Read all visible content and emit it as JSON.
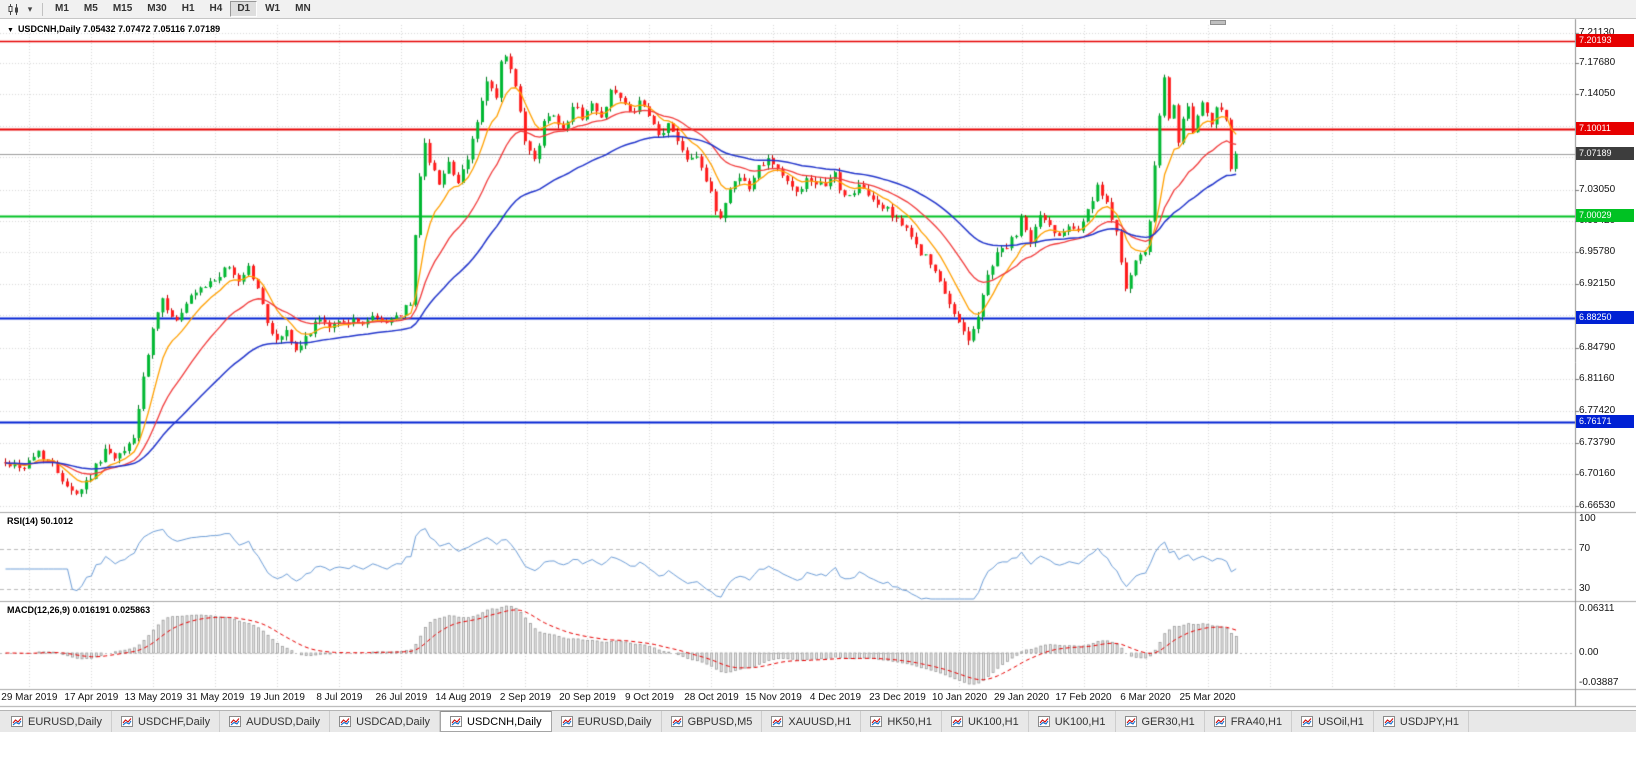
{
  "toolbar": {
    "timeframes": [
      {
        "label": "M1",
        "active": false
      },
      {
        "label": "M5",
        "active": false
      },
      {
        "label": "M15",
        "active": false
      },
      {
        "label": "M30",
        "active": false
      },
      {
        "label": "H1",
        "active": false
      },
      {
        "label": "H4",
        "active": false
      },
      {
        "label": "D1",
        "active": true
      },
      {
        "label": "W1",
        "active": false
      },
      {
        "label": "MN",
        "active": false
      }
    ]
  },
  "chart": {
    "title": "USDCNH,Daily 7.05432 7.07472 7.05116 7.07189",
    "symbol": "USDCNH",
    "period": "Daily",
    "ohlc": {
      "open": "7.05432",
      "high": "7.07472",
      "low": "7.05116",
      "close": "7.07189"
    },
    "current_price": {
      "text": "7.07189",
      "value": 7.07189,
      "badge_color": "#3d3d3d"
    },
    "hlines": [
      {
        "text": "7.20193",
        "value": 7.20193,
        "color": "#e60000",
        "width": 1.5
      },
      {
        "text": "7.10011",
        "value": 7.10011,
        "color": "#e60000",
        "width": 2
      },
      {
        "text": "7.00029",
        "value": 7.00029,
        "color": "#00c223",
        "width": 2
      },
      {
        "text": "6.88250",
        "value": 6.8825,
        "color": "#0021d4",
        "width": 2
      },
      {
        "text": "6.76171",
        "value": 6.76171,
        "color": "#0021d4",
        "width": 2
      }
    ],
    "y_axis_labels": [
      {
        "text": "7.21130",
        "value": 7.2113
      },
      {
        "text": "7.17680",
        "value": 7.1768
      },
      {
        "text": "7.14050",
        "value": 7.1405
      },
      {
        "text": "7.03050",
        "value": 7.0305
      },
      {
        "text": "6.99420",
        "value": 6.9942
      },
      {
        "text": "6.95780",
        "value": 6.9578
      },
      {
        "text": "6.92150",
        "value": 6.9215
      },
      {
        "text": "6.84790",
        "value": 6.8479
      },
      {
        "text": "6.81160",
        "value": 6.8116
      },
      {
        "text": "6.77420",
        "value": 6.7742
      },
      {
        "text": "6.73790",
        "value": 6.7379
      },
      {
        "text": "6.70160",
        "value": 6.7016
      },
      {
        "text": "6.66530",
        "value": 6.6653
      }
    ],
    "grid_prices": [
      7.2113,
      7.1768,
      7.1405,
      7.1042,
      7.0679,
      7.0305,
      6.9942,
      6.9578,
      6.9215,
      6.8852,
      6.8479,
      6.8116,
      6.7742,
      6.7379,
      6.7016,
      6.6653
    ],
    "x_axis_dates": [
      "29 Mar 2019",
      "17 Apr 2019",
      "13 May 2019",
      "31 May 2019",
      "19 Jun 2019",
      "8 Jul 2019",
      "26 Jul 2019",
      "14 Aug 2019",
      "2 Sep 2019",
      "20 Sep 2019",
      "9 Oct 2019",
      "28 Oct 2019",
      "15 Nov 2019",
      "4 Dec 2019",
      "23 Dec 2019",
      "10 Jan 2020",
      "29 Jan 2020",
      "17 Feb 2020",
      "6 Mar 2020",
      "25 Mar 2020"
    ]
  },
  "rsi": {
    "label": "RSI(14) 50.1012",
    "period": 14,
    "value": "50.1012",
    "axis_labels": [
      {
        "text": "100",
        "value": 100
      },
      {
        "text": "70",
        "value": 70
      },
      {
        "text": "30",
        "value": 30
      }
    ],
    "level_lines": [
      70,
      30
    ]
  },
  "macd": {
    "label": "MACD(12,26,9) 0.016191 0.025863",
    "params": "12,26,9",
    "values": [
      "0.016191",
      "0.025863"
    ],
    "axis_labels": [
      {
        "text": "0.06311",
        "value": 0.06311
      },
      {
        "text": "0.00",
        "value": 0
      },
      {
        "text": "-0.03887",
        "value": -0.03887
      }
    ]
  },
  "tabs": [
    {
      "label": "EURUSD,Daily",
      "active": false
    },
    {
      "label": "USDCHF,Daily",
      "active": false
    },
    {
      "label": "AUDUSD,Daily",
      "active": false
    },
    {
      "label": "USDCAD,Daily",
      "active": false
    },
    {
      "label": "USDCNH,Daily",
      "active": true
    },
    {
      "label": "EURUSD,Daily",
      "active": false
    },
    {
      "label": "GBPUSD,M5",
      "active": false
    },
    {
      "label": "XAUUSD,H1",
      "active": false
    },
    {
      "label": "HK50,H1",
      "active": false
    },
    {
      "label": "UK100,H1",
      "active": false
    },
    {
      "label": "UK100,H1",
      "active": false
    },
    {
      "label": "GER30,H1",
      "active": false
    },
    {
      "label": "FRA40,H1",
      "active": false
    },
    {
      "label": "USOil,H1",
      "active": false
    },
    {
      "label": "USDJPY,H1",
      "active": false
    }
  ],
  "colors": {
    "up": "#00b832",
    "up_stroke": "#007d20",
    "down": "#ff1a1a",
    "down_stroke": "#c40000",
    "ma_fast": "#ffa000",
    "ma_mid": "#f23c3c",
    "ma_slow": "#2336cc",
    "rsi": "#6f9fd8",
    "rsi_level": "#bcbcbc",
    "grid": "#d9d9d9",
    "macd_hist_fill": "#e9e9e9",
    "macd_hist_stroke": "#9b9b9b",
    "macd_signal": "#e80000",
    "current_line": "#9c9c9c",
    "separator": "#a8a8a8",
    "axis_line": "#8f8f8f"
  },
  "chart_data": {
    "type": "candlestick",
    "symbol": "USDCNH",
    "timeframe": "Daily",
    "date_range": [
      "29 Mar 2019",
      "7 Apr 2020"
    ],
    "y_range": [
      6.6653,
      7.2113
    ],
    "candle_count": 259,
    "last_candle": {
      "open": 7.05432,
      "high": 7.07472,
      "low": 7.05116,
      "close": 7.07189
    },
    "horizontal_levels": [
      7.20193,
      7.10011,
      7.07189,
      7.00029,
      6.8825,
      6.76171
    ],
    "moving_averages": [
      {
        "period": 8,
        "color_key": "ma_fast"
      },
      {
        "period": 20,
        "color_key": "ma_mid"
      },
      {
        "period": 45,
        "color_key": "ma_slow"
      }
    ],
    "indicators": [
      {
        "name": "RSI",
        "period": 14,
        "current": 50.1012
      },
      {
        "name": "MACD",
        "fast": 12,
        "slow": 26,
        "signal": 9,
        "current": [
          0.016191,
          0.025863
        ]
      }
    ],
    "price_path": [
      [
        0,
        6.715
      ],
      [
        4,
        6.71
      ],
      [
        7,
        6.728
      ],
      [
        10,
        6.712
      ],
      [
        13,
        6.69
      ],
      [
        15,
        6.679
      ],
      [
        18,
        6.7
      ],
      [
        21,
        6.73
      ],
      [
        23,
        6.718
      ],
      [
        25,
        6.728
      ],
      [
        27,
        6.745
      ],
      [
        29,
        6.81
      ],
      [
        31,
        6.868
      ],
      [
        33,
        6.902
      ],
      [
        36,
        6.878
      ],
      [
        39,
        6.905
      ],
      [
        42,
        6.918
      ],
      [
        45,
        6.932
      ],
      [
        47,
        6.94
      ],
      [
        49,
        6.925
      ],
      [
        51,
        6.942
      ],
      [
        53,
        6.915
      ],
      [
        55,
        6.878
      ],
      [
        57,
        6.855
      ],
      [
        59,
        6.868
      ],
      [
        61,
        6.842
      ],
      [
        63,
        6.858
      ],
      [
        65,
        6.878
      ],
      [
        68,
        6.872
      ],
      [
        71,
        6.88
      ],
      [
        74,
        6.876
      ],
      [
        77,
        6.882
      ],
      [
        80,
        6.878
      ],
      [
        83,
        6.888
      ],
      [
        85,
        6.898
      ],
      [
        86,
        6.975
      ],
      [
        87,
        7.048
      ],
      [
        88,
        7.088
      ],
      [
        89,
        7.06
      ],
      [
        91,
        7.04
      ],
      [
        93,
        7.062
      ],
      [
        95,
        7.035
      ],
      [
        97,
        7.065
      ],
      [
        99,
        7.11
      ],
      [
        101,
        7.155
      ],
      [
        103,
        7.135
      ],
      [
        104,
        7.175
      ],
      [
        105,
        7.185
      ],
      [
        107,
        7.148
      ],
      [
        109,
        7.085
      ],
      [
        111,
        7.062
      ],
      [
        113,
        7.108
      ],
      [
        115,
        7.12
      ],
      [
        117,
        7.098
      ],
      [
        119,
        7.128
      ],
      [
        121,
        7.115
      ],
      [
        123,
        7.128
      ],
      [
        125,
        7.112
      ],
      [
        127,
        7.148
      ],
      [
        129,
        7.135
      ],
      [
        131,
        7.118
      ],
      [
        133,
        7.13
      ],
      [
        135,
        7.115
      ],
      [
        137,
        7.092
      ],
      [
        139,
        7.105
      ],
      [
        141,
        7.088
      ],
      [
        143,
        7.068
      ],
      [
        145,
        7.072
      ],
      [
        147,
        7.04
      ],
      [
        149,
        7.008
      ],
      [
        150,
        6.998
      ],
      [
        152,
        7.032
      ],
      [
        154,
        7.048
      ],
      [
        156,
        7.03
      ],
      [
        158,
        7.058
      ],
      [
        160,
        7.068
      ],
      [
        162,
        7.055
      ],
      [
        164,
        7.038
      ],
      [
        166,
        7.028
      ],
      [
        168,
        7.042
      ],
      [
        170,
        7.032
      ],
      [
        172,
        7.038
      ],
      [
        174,
        7.048
      ],
      [
        175,
        7.03
      ],
      [
        177,
        7.022
      ],
      [
        179,
        7.035
      ],
      [
        181,
        7.022
      ],
      [
        184,
        7.01
      ],
      [
        187,
        6.998
      ],
      [
        189,
        6.982
      ],
      [
        191,
        6.966
      ],
      [
        193,
        6.952
      ],
      [
        195,
        6.935
      ],
      [
        197,
        6.908
      ],
      [
        199,
        6.886
      ],
      [
        201,
        6.87
      ],
      [
        202,
        6.858
      ],
      [
        204,
        6.882
      ],
      [
        206,
        6.932
      ],
      [
        208,
        6.958
      ],
      [
        210,
        6.965
      ],
      [
        212,
        6.978
      ],
      [
        213,
        6.995
      ],
      [
        215,
        6.972
      ],
      [
        217,
        7.0
      ],
      [
        219,
        6.988
      ],
      [
        221,
        6.978
      ],
      [
        223,
        6.992
      ],
      [
        225,
        6.985
      ],
      [
        227,
        7.005
      ],
      [
        229,
        7.032
      ],
      [
        231,
        7.012
      ],
      [
        233,
        6.985
      ],
      [
        235,
        6.915
      ],
      [
        237,
        6.945
      ],
      [
        239,
        6.958
      ],
      [
        240,
        6.995
      ],
      [
        241,
        7.055
      ],
      [
        242,
        7.115
      ],
      [
        243,
        7.158
      ],
      [
        244,
        7.108
      ],
      [
        245,
        7.132
      ],
      [
        246,
        7.088
      ],
      [
        247,
        7.112
      ],
      [
        248,
        7.122
      ],
      [
        249,
        7.098
      ],
      [
        250,
        7.115
      ],
      [
        251,
        7.128
      ],
      [
        252,
        7.115
      ],
      [
        253,
        7.105
      ],
      [
        254,
        7.122
      ],
      [
        255,
        7.125
      ],
      [
        256,
        7.112
      ],
      [
        257,
        7.058
      ],
      [
        258,
        7.072
      ]
    ]
  }
}
